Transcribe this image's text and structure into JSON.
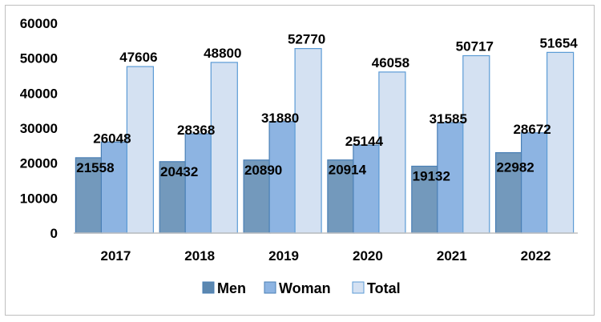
{
  "chart_data": {
    "type": "bar",
    "categories": [
      "2017",
      "2018",
      "2019",
      "2020",
      "2021",
      "2022"
    ],
    "series": [
      {
        "name": "Men",
        "values": [
          21558,
          20432,
          20890,
          20914,
          19132,
          22982
        ],
        "color": "#5b87b0"
      },
      {
        "name": "Woman",
        "values": [
          26048,
          28368,
          31880,
          25144,
          31585,
          28672
        ],
        "color": "#8db4e2"
      },
      {
        "name": "Total",
        "values": [
          47606,
          48800,
          52770,
          46058,
          50717,
          51654
        ],
        "color": "#d4e1f2"
      }
    ],
    "y_ticks": [
      "0",
      "10000",
      "20000",
      "30000",
      "40000",
      "50000",
      "60000"
    ],
    "ylim": [
      0,
      60000
    ],
    "grid": false,
    "legend": "bottom",
    "title": "",
    "xlabel": "",
    "ylabel": ""
  }
}
